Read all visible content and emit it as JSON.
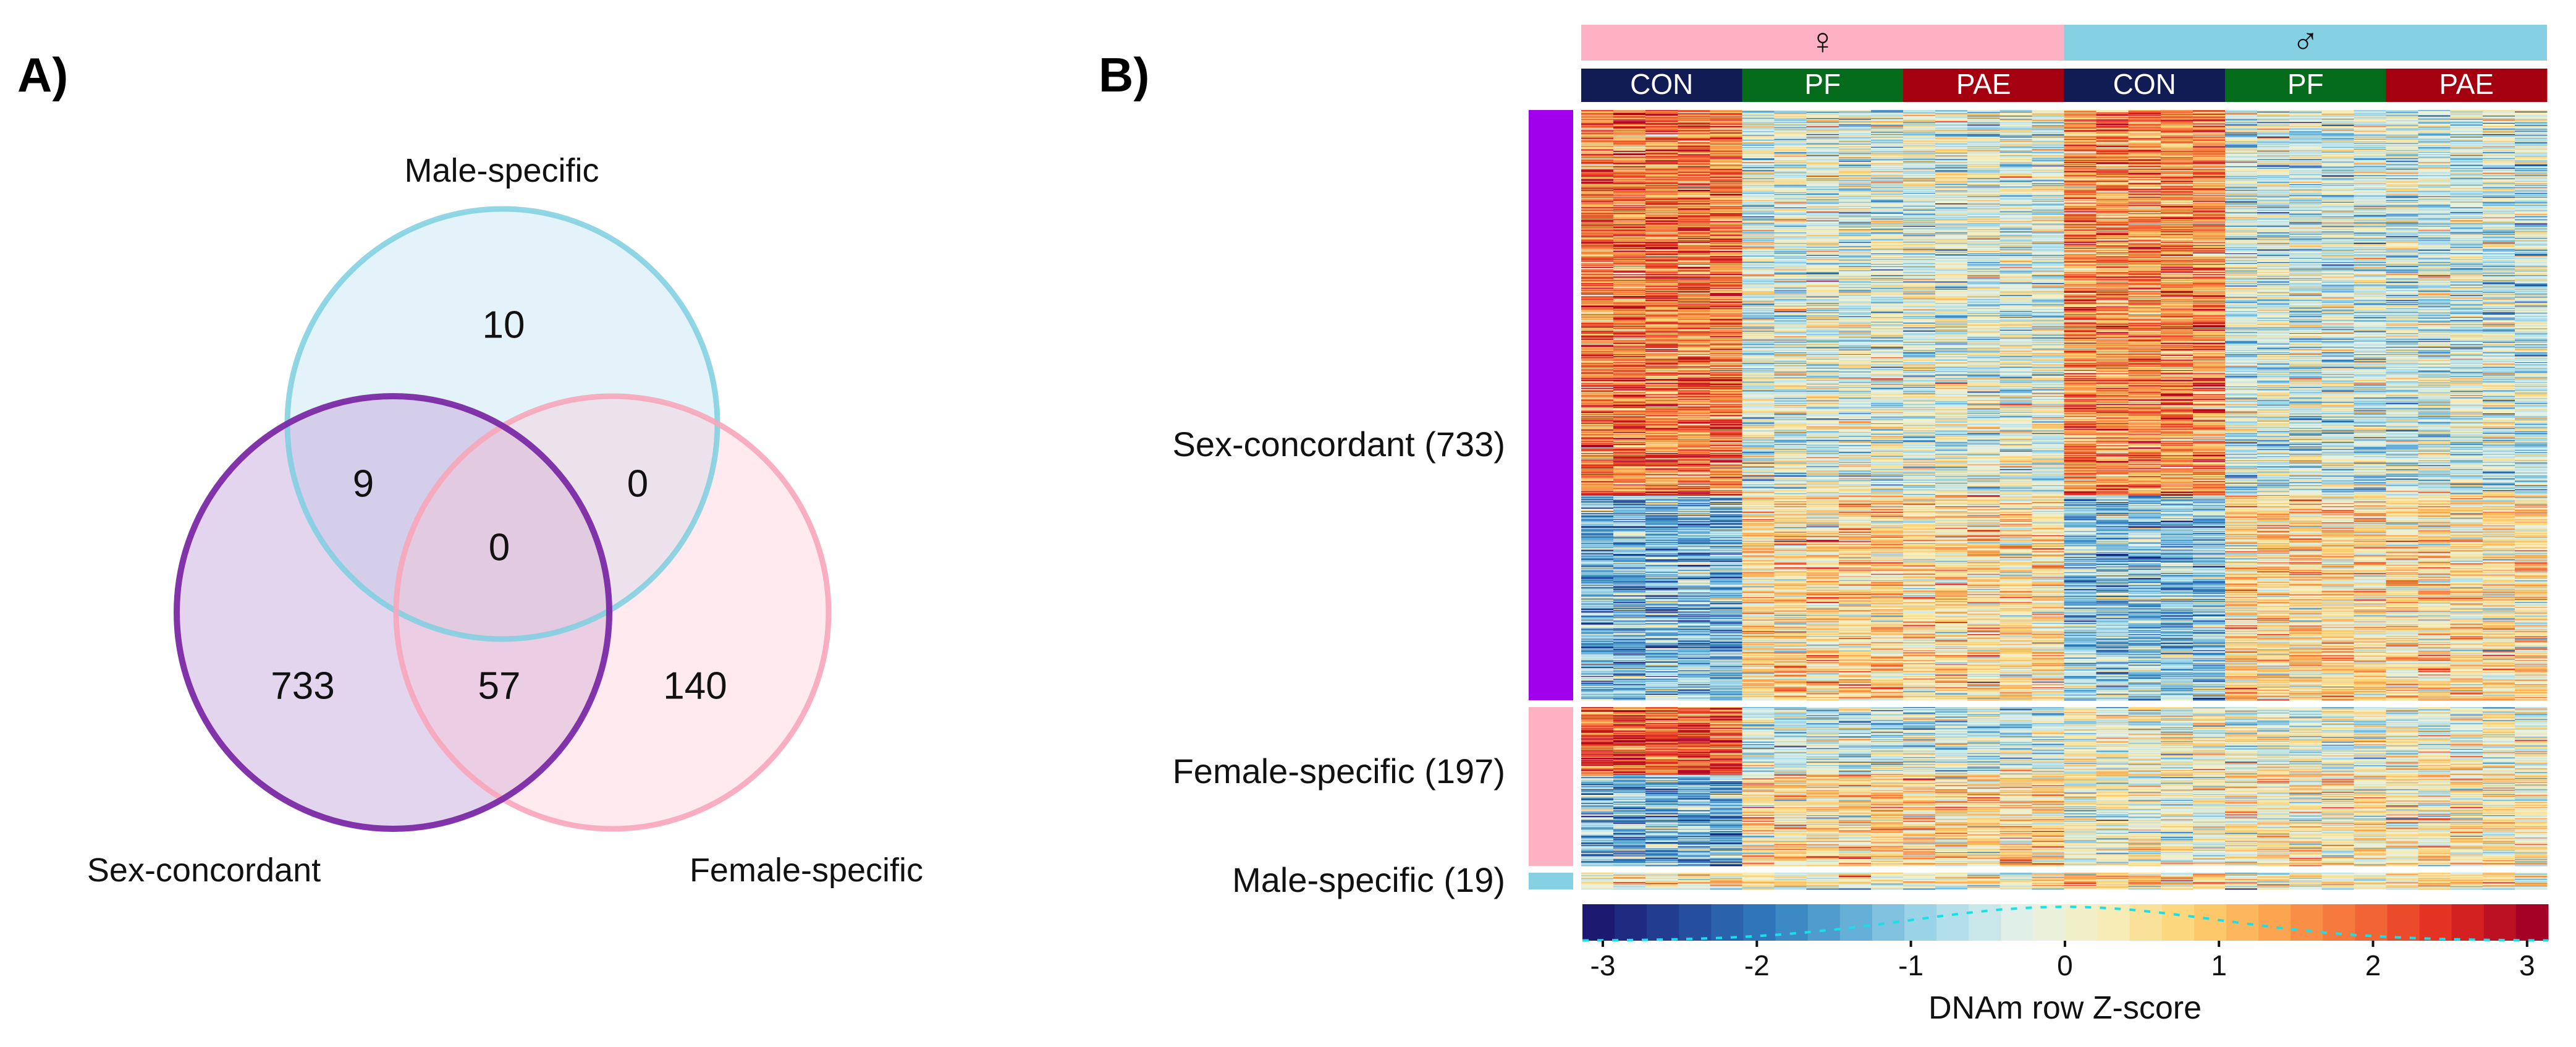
{
  "panel_a": {
    "label": "A)",
    "chart_data": {
      "type": "venn",
      "sets": [
        {
          "name": "Male-specific",
          "stroke": "#7ecfe0",
          "fill": "#a9dbec"
        },
        {
          "name": "Sex-concordant",
          "stroke": "#7b2aa5",
          "fill": "#bf9ad6"
        },
        {
          "name": "Female-specific",
          "stroke": "#f7a6ba",
          "fill": "#fbc3d0"
        }
      ],
      "regions": {
        "male_only": "10",
        "male_concordant": "9",
        "male_female": "0",
        "all_three": "0",
        "concordant_only": "733",
        "concordant_female": "57",
        "female_only": "140"
      }
    }
  },
  "panel_b": {
    "label": "B)",
    "chart_data": {
      "type": "heatmap",
      "sexes": [
        {
          "symbol": "♀",
          "color": "#fdb1c2"
        },
        {
          "symbol": "♂",
          "color": "#86d0e4"
        }
      ],
      "groups": [
        {
          "name": "CON",
          "sex": "female",
          "color": "#111c55"
        },
        {
          "name": "PF",
          "sex": "female",
          "color": "#056c1c"
        },
        {
          "name": "PAE",
          "sex": "female",
          "color": "#a5000f"
        },
        {
          "name": "CON",
          "sex": "male",
          "color": "#111c55"
        },
        {
          "name": "PF",
          "sex": "male",
          "color": "#056c1c"
        },
        {
          "name": "PAE",
          "sex": "male",
          "color": "#a5000f"
        }
      ],
      "samples_per_group": 5,
      "row_clusters": [
        {
          "label": "Sex-concordant (733)",
          "count": 733,
          "color": "#a100ec",
          "subclusters": [
            {
              "rows": 478,
              "approx_mean_z_by_group": [
                1.7,
                -0.2,
                -0.2,
                1.5,
                -0.4,
                -0.4
              ]
            },
            {
              "rows": 255,
              "approx_mean_z_by_group": [
                -1.2,
                0.6,
                0.5,
                -1.0,
                0.6,
                0.5
              ]
            }
          ]
        },
        {
          "label": "Female-specific (197)",
          "count": 197,
          "color": "#fdb1c2",
          "subclusters": [
            {
              "rows": 84,
              "approx_mean_z_by_group": [
                2.0,
                -0.4,
                -0.4,
                0.1,
                -0.1,
                0.0
              ]
            },
            {
              "rows": 113,
              "approx_mean_z_by_group": [
                -1.2,
                0.6,
                0.6,
                0.0,
                0.3,
                0.3
              ]
            }
          ]
        },
        {
          "label": "Male-specific (19)",
          "count": 19,
          "color": "#86d0e4",
          "subclusters": [
            {
              "rows": 19,
              "approx_mean_z_by_group": [
                0.1,
                0.1,
                0.0,
                0.5,
                -0.1,
                0.1
              ]
            }
          ]
        }
      ],
      "colorbar": {
        "title": "DNAm row Z-score",
        "range": [
          -3,
          3
        ],
        "ticks": [
          "-3",
          "-2",
          "-1",
          "0",
          "1",
          "2",
          "3"
        ],
        "palette": [
          "#1b1a70",
          "#24479a",
          "#2f7bbd",
          "#62aed6",
          "#a8dbeb",
          "#e4f1e8",
          "#f7eeba",
          "#fdd271",
          "#fca24f",
          "#f46a37",
          "#e12a1f",
          "#a50026"
        ],
        "density_trace_color": "#18e0e8"
      }
    }
  }
}
